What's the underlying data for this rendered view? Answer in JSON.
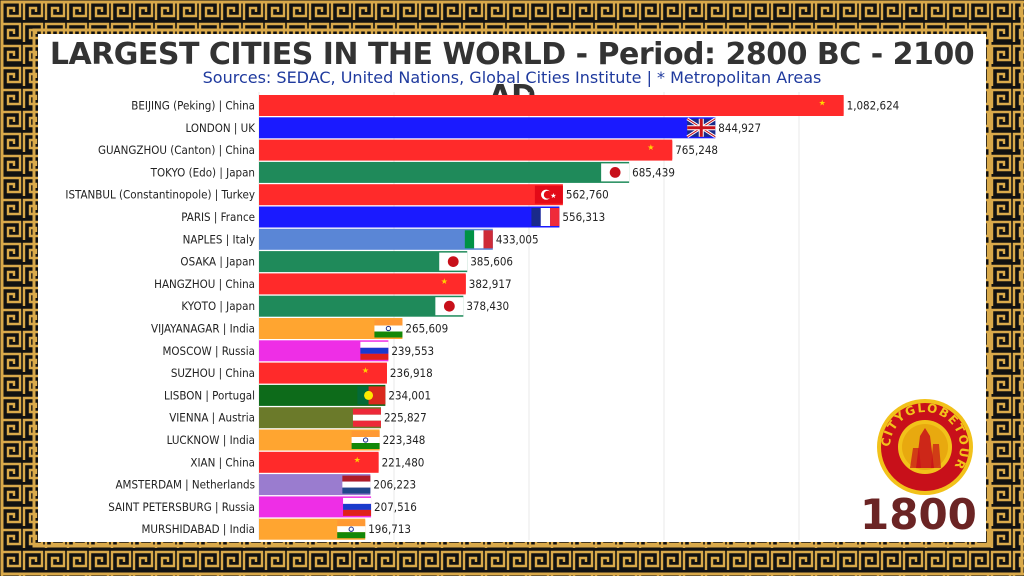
{
  "title": "LARGEST CITIES IN THE WORLD - Period: 2800 BC - 2100 AD",
  "subtitle": "Sources: SEDAC, United Nations, Global Cities Institute | * Metropolitan Areas",
  "year": "1800",
  "logo_text": "CITYGLOBETOUR",
  "colors": {
    "frame_gold": "#d9a94a",
    "frame_dark": "#111111",
    "china": "#ff2a2a",
    "uk": "#1a1aff",
    "japan": "#1f8a5a",
    "turkey": "#ff2a2a",
    "france": "#1a1aff",
    "italy": "#5a86d6",
    "india": "#ffa530",
    "russia": "#ee2ee6",
    "portugal": "#0d6b1a",
    "austria": "#6b7a2a",
    "netherlands": "#9a7ccf"
  },
  "chart_data": {
    "type": "bar",
    "orientation": "horizontal",
    "xlim": [
      0,
      1150000
    ],
    "grid": true,
    "categories": [
      "BEIJING (Peking) | China",
      "LONDON | UK",
      "GUANGZHOU (Canton) | China",
      "TOKYO (Edo) | Japan",
      "ISTANBUL (Constantinopole) | Turkey",
      "PARIS | France",
      "NAPLES | Italy",
      "OSAKA | Japan",
      "HANGZHOU | China",
      "KYOTO | Japan",
      "VIJAYANAGAR | India",
      "MOSCOW | Russia",
      "SUZHOU | China",
      "LISBON | Portugal",
      "VIENNA | Austria",
      "LUCKNOW | India",
      "XIAN | China",
      "AMSTERDAM | Netherlands",
      "SAINT PETERSBURG | Russia",
      "MURSHIDABAD | India"
    ],
    "values": [
      1082624,
      844927,
      765248,
      685439,
      562760,
      556313,
      433005,
      385606,
      382917,
      378430,
      265609,
      239553,
      236918,
      234001,
      225827,
      223348,
      221480,
      206223,
      207516,
      196713
    ],
    "value_labels": [
      "1,082,624",
      "844,927",
      "765,248",
      "685,439",
      "562,760",
      "556,313",
      "433,005",
      "385,606",
      "382,917",
      "378,430",
      "265,609",
      "239,553",
      "236,918",
      "234,001",
      "225,827",
      "223,348",
      "221,480",
      "206,223",
      "207,516",
      "196,713"
    ],
    "country": [
      "china",
      "uk",
      "china",
      "japan",
      "turkey",
      "france",
      "italy",
      "japan",
      "china",
      "japan",
      "india",
      "russia",
      "china",
      "portugal",
      "austria",
      "india",
      "china",
      "netherlands",
      "russia",
      "india"
    ]
  }
}
